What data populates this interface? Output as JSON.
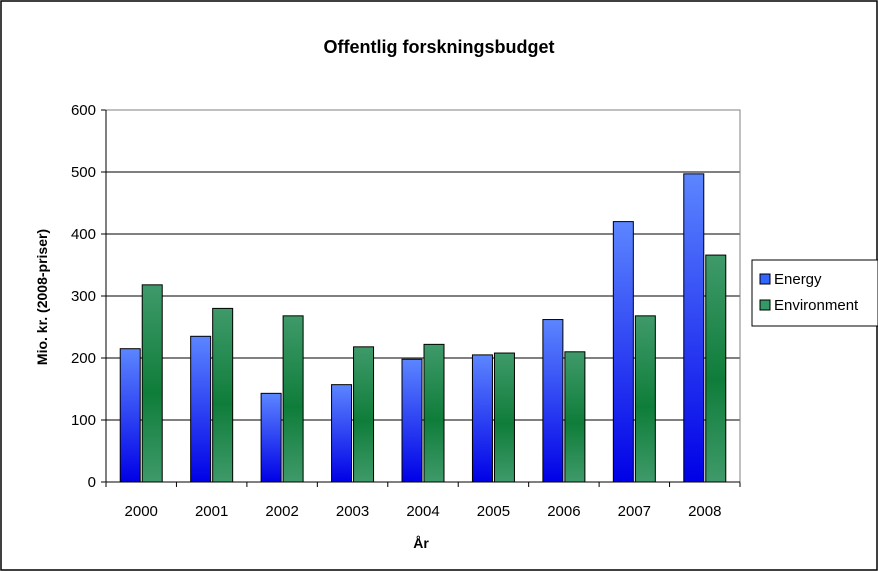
{
  "chart_data": {
    "type": "bar",
    "title": "Offentlig forskningsbudget",
    "xlabel": "År",
    "ylabel": "Mio. kr. (2008-priser)",
    "categories": [
      "2000",
      "2001",
      "2002",
      "2003",
      "2004",
      "2005",
      "2006",
      "2007",
      "2008"
    ],
    "series": [
      {
        "name": "Energy",
        "values": [
          215,
          235,
          143,
          157,
          198,
          205,
          262,
          420,
          497
        ],
        "color": "#3366ff"
      },
      {
        "name": "Environment",
        "values": [
          318,
          280,
          268,
          218,
          222,
          208,
          210,
          268,
          366
        ],
        "color": "#339966"
      }
    ],
    "ylim": [
      0,
      600
    ],
    "yticks": [
      0,
      100,
      200,
      300,
      400,
      500,
      600
    ],
    "grid": true,
    "legend": "right"
  }
}
